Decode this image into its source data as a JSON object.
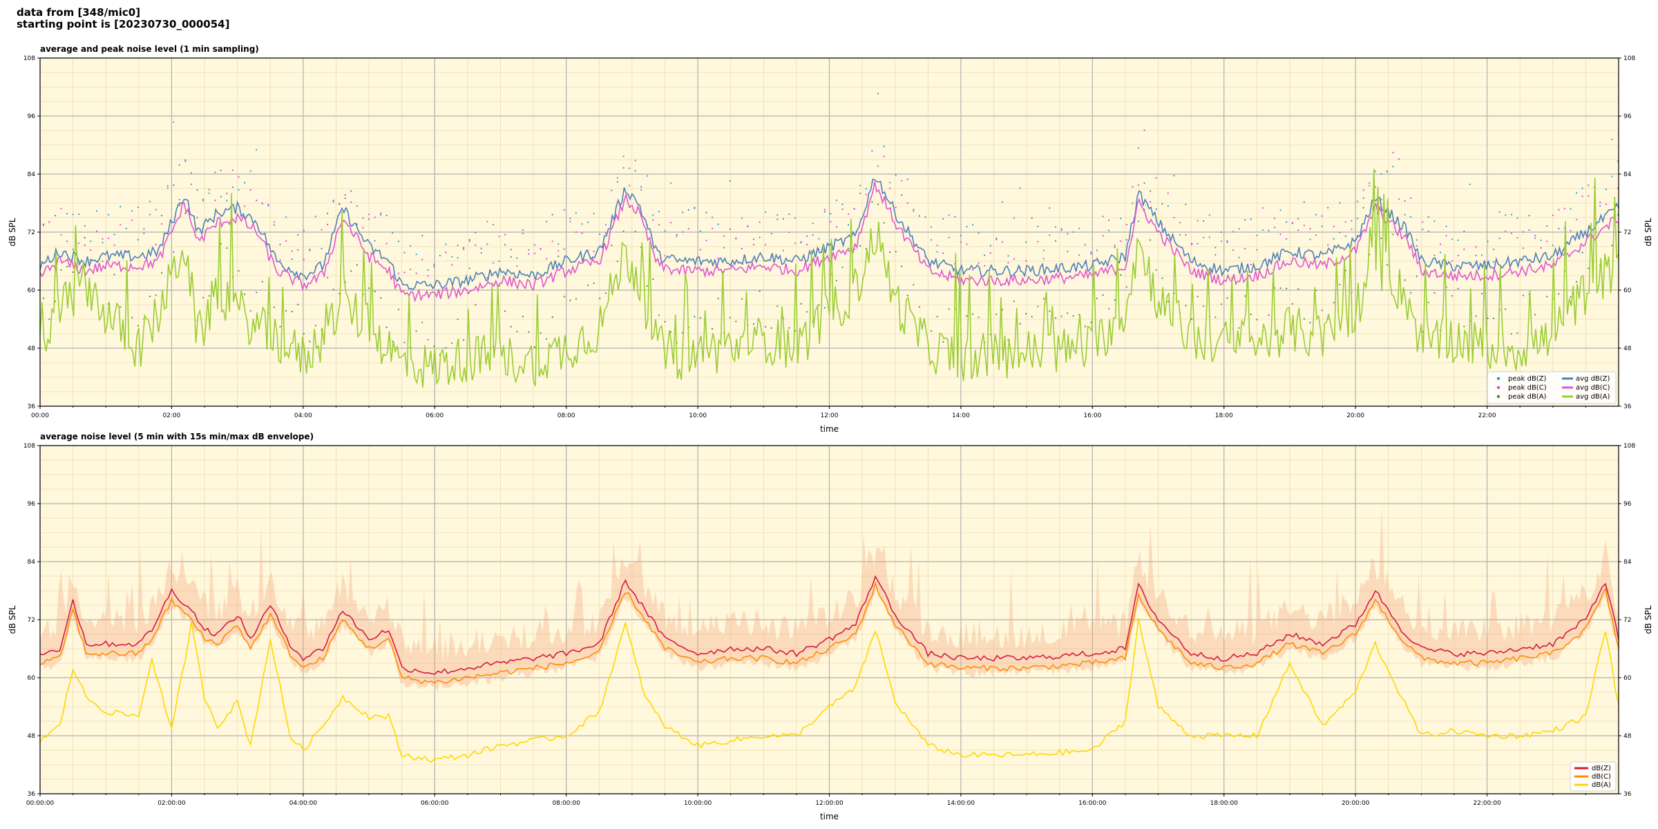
{
  "header": {
    "line1": "data from [348/mic0]",
    "line2": "starting point is [20230730_000054]"
  },
  "chart_data": [
    {
      "type": "line",
      "title": "average and peak noise level (1 min sampling)",
      "xlabel": "time",
      "ylabel": "dB SPL",
      "ylim": [
        36,
        108
      ],
      "yticks": [
        36,
        48,
        60,
        72,
        84,
        96,
        108
      ],
      "xlim_hours": [
        0,
        24
      ],
      "xtick_labels": [
        "00:00",
        "02:00",
        "04:00",
        "06:00",
        "08:00",
        "10:00",
        "12:00",
        "14:00",
        "16:00",
        "18:00",
        "20:00",
        "22:00"
      ],
      "grid": true,
      "legend_position": "lower-right",
      "legend": [
        {
          "label": "peak dB(Z)",
          "kind": "dots",
          "color": "#1f9bd6"
        },
        {
          "label": "peak dB(C)",
          "kind": "dots",
          "color": "#e040e0"
        },
        {
          "label": "peak dB(A)",
          "kind": "dots",
          "color": "#4a8a4a"
        },
        {
          "label": "avg dB(Z)",
          "kind": "line",
          "color": "#4e7fb8"
        },
        {
          "label": "avg dB(C)",
          "kind": "line",
          "color": "#e055d0"
        },
        {
          "label": "avg dB(A)",
          "kind": "line",
          "color": "#9acd32"
        }
      ],
      "series": [
        {
          "name": "avg dB(Z)",
          "color": "#4e7fb8",
          "x": [
            0,
            0.3,
            0.7,
            1.0,
            1.5,
            1.8,
            2.2,
            2.4,
            2.7,
            3.0,
            3.3,
            3.6,
            4.0,
            4.3,
            4.6,
            5.0,
            5.3,
            5.5,
            6.0,
            6.5,
            7.0,
            7.5,
            8.0,
            8.5,
            8.9,
            9.1,
            9.4,
            9.7,
            10.0,
            10.5,
            11.0,
            11.5,
            12.0,
            12.4,
            12.7,
            13.0,
            13.5,
            14.0,
            15.0,
            16.0,
            16.5,
            16.7,
            17.0,
            17.5,
            18.0,
            18.5,
            19.0,
            19.5,
            20.0,
            20.3,
            20.8,
            21.0,
            21.5,
            22.0,
            22.5,
            23.0,
            23.5,
            24.0
          ],
          "values": [
            65,
            68,
            66,
            67,
            67,
            68,
            80,
            72,
            76,
            77,
            74,
            66,
            63,
            65,
            77,
            69,
            66,
            61,
            61,
            62,
            64,
            63,
            66,
            68,
            81,
            78,
            67,
            66,
            66,
            66,
            67,
            66,
            69,
            71,
            84,
            76,
            66,
            64,
            64,
            65,
            67,
            80,
            74,
            66,
            64,
            65,
            68,
            67,
            70,
            79,
            72,
            66,
            65,
            65,
            66,
            67,
            72,
            77
          ]
        },
        {
          "name": "avg dB(C)",
          "color": "#e055d0",
          "x": [
            0,
            0.3,
            0.7,
            1.0,
            1.5,
            1.8,
            2.2,
            2.4,
            2.7,
            3.0,
            3.3,
            3.6,
            4.0,
            4.3,
            4.6,
            5.0,
            5.3,
            5.5,
            6.0,
            6.5,
            7.0,
            7.5,
            8.0,
            8.5,
            8.9,
            9.1,
            9.4,
            9.7,
            10.0,
            10.5,
            11.0,
            11.5,
            12.0,
            12.4,
            12.7,
            13.0,
            13.5,
            14.0,
            15.0,
            16.0,
            16.5,
            16.7,
            17.0,
            17.5,
            18.0,
            18.5,
            19.0,
            19.5,
            20.0,
            20.3,
            20.8,
            21.0,
            21.5,
            22.0,
            22.5,
            23.0,
            23.5,
            24.0
          ],
          "values": [
            63,
            66,
            64,
            65,
            65,
            66,
            78,
            70,
            74,
            75,
            72,
            64,
            61,
            63,
            75,
            67,
            64,
            59,
            59,
            60,
            62,
            61,
            64,
            66,
            79,
            76,
            65,
            64,
            64,
            64,
            65,
            64,
            67,
            69,
            82,
            74,
            64,
            62,
            62,
            63,
            65,
            78,
            72,
            64,
            62,
            63,
            66,
            65,
            68,
            77,
            70,
            64,
            63,
            63,
            64,
            65,
            70,
            75
          ]
        },
        {
          "name": "avg dB(A)",
          "color": "#9acd32",
          "x": [
            0,
            0.3,
            0.7,
            1.0,
            1.5,
            1.8,
            2.2,
            2.4,
            2.7,
            3.0,
            3.3,
            3.6,
            4.0,
            4.3,
            4.6,
            5.0,
            5.3,
            5.5,
            6.0,
            6.5,
            7.0,
            7.5,
            8.0,
            8.5,
            8.9,
            9.1,
            9.4,
            9.7,
            10.0,
            10.5,
            11.0,
            11.5,
            12.0,
            12.4,
            12.7,
            13.0,
            13.5,
            14.0,
            15.0,
            16.0,
            16.5,
            16.7,
            17.0,
            17.5,
            18.0,
            18.5,
            19.0,
            19.5,
            20.0,
            20.3,
            20.8,
            21.0,
            21.5,
            22.0,
            22.5,
            23.0,
            23.5,
            24.0
          ],
          "values": [
            47,
            56,
            62,
            55,
            48,
            55,
            70,
            50,
            60,
            56,
            52,
            50,
            46,
            50,
            58,
            52,
            48,
            45,
            44,
            46,
            46,
            45,
            48,
            52,
            68,
            62,
            48,
            46,
            47,
            48,
            50,
            48,
            55,
            60,
            72,
            58,
            48,
            46,
            47,
            48,
            56,
            70,
            58,
            50,
            49,
            49,
            52,
            50,
            56,
            66,
            58,
            49,
            50,
            48,
            48,
            50,
            60,
            65
          ]
        }
      ]
    },
    {
      "type": "line",
      "title": "average noise level (5 min with 15s min/max dB envelope)",
      "xlabel": "time",
      "ylabel": "dB SPL",
      "ylim": [
        36,
        108
      ],
      "yticks": [
        36,
        48,
        60,
        72,
        84,
        96,
        108
      ],
      "xlim_hours": [
        0,
        24
      ],
      "xtick_labels": [
        "00:00:00",
        "02:00:00",
        "04:00:00",
        "06:00:00",
        "08:00:00",
        "10:00:00",
        "12:00:00",
        "14:00:00",
        "16:00:00",
        "18:00:00",
        "20:00:00",
        "22:00:00"
      ],
      "grid": true,
      "legend_position": "lower-right",
      "legend": [
        {
          "label": "dB(Z)",
          "kind": "line",
          "color": "#d7193c"
        },
        {
          "label": "dB(C)",
          "kind": "line",
          "color": "#ff8c00"
        },
        {
          "label": "dB(A)",
          "kind": "line",
          "color": "#ffd700"
        }
      ],
      "series": [
        {
          "name": "dB(Z)",
          "color": "#d7193c",
          "x": [
            0,
            0.3,
            0.5,
            0.7,
            1.0,
            1.5,
            1.7,
            2.0,
            2.3,
            2.5,
            2.7,
            3.0,
            3.2,
            3.5,
            3.8,
            4.0,
            4.3,
            4.6,
            5.0,
            5.3,
            5.5,
            6.0,
            6.5,
            7.0,
            7.5,
            8.0,
            8.5,
            8.9,
            9.2,
            9.5,
            10.0,
            10.5,
            11.0,
            11.5,
            12.0,
            12.4,
            12.7,
            13.0,
            13.5,
            14.0,
            15.0,
            16.0,
            16.5,
            16.7,
            17.0,
            17.5,
            18.0,
            18.5,
            19.0,
            19.5,
            20.0,
            20.3,
            20.7,
            21.0,
            21.5,
            22.0,
            22.5,
            23.0,
            23.5,
            23.8,
            24.0
          ],
          "values": [
            65,
            66,
            76,
            67,
            67,
            67,
            70,
            78,
            74,
            70,
            69,
            73,
            68,
            75,
            67,
            64,
            66,
            74,
            68,
            70,
            62,
            61,
            62,
            63,
            64,
            65,
            67,
            80,
            74,
            68,
            65,
            66,
            66,
            65,
            68,
            71,
            81,
            73,
            65,
            64,
            64,
            65,
            66,
            79,
            72,
            65,
            64,
            65,
            69,
            67,
            71,
            78,
            70,
            66,
            65,
            65,
            66,
            67,
            72,
            80,
            68
          ]
        },
        {
          "name": "dB(C)",
          "color": "#ff8c00",
          "x": [
            0,
            0.3,
            0.5,
            0.7,
            1.0,
            1.5,
            1.7,
            2.0,
            2.3,
            2.5,
            2.7,
            3.0,
            3.2,
            3.5,
            3.8,
            4.0,
            4.3,
            4.6,
            5.0,
            5.3,
            5.5,
            6.0,
            6.5,
            7.0,
            7.5,
            8.0,
            8.5,
            8.9,
            9.2,
            9.5,
            10.0,
            10.5,
            11.0,
            11.5,
            12.0,
            12.4,
            12.7,
            13.0,
            13.5,
            14.0,
            15.0,
            16.0,
            16.5,
            16.7,
            17.0,
            17.5,
            18.0,
            18.5,
            19.0,
            19.5,
            20.0,
            20.3,
            20.7,
            21.0,
            21.5,
            22.0,
            22.5,
            23.0,
            23.5,
            23.8,
            24.0
          ],
          "values": [
            63,
            64,
            74,
            65,
            65,
            65,
            68,
            76,
            72,
            68,
            67,
            71,
            66,
            73,
            65,
            62,
            64,
            72,
            66,
            68,
            60,
            59,
            60,
            61,
            62,
            63,
            65,
            78,
            72,
            66,
            63,
            64,
            64,
            63,
            66,
            69,
            79,
            71,
            63,
            62,
            62,
            63,
            64,
            77,
            70,
            63,
            62,
            63,
            67,
            65,
            69,
            76,
            68,
            64,
            63,
            63,
            64,
            65,
            70,
            78,
            66
          ]
        },
        {
          "name": "dB(A)",
          "color": "#ffd700",
          "x": [
            0,
            0.3,
            0.5,
            0.7,
            1.0,
            1.5,
            1.7,
            2.0,
            2.3,
            2.5,
            2.7,
            3.0,
            3.2,
            3.5,
            3.8,
            4.0,
            4.3,
            4.6,
            5.0,
            5.3,
            5.5,
            6.0,
            6.5,
            7.0,
            7.5,
            8.0,
            8.5,
            8.9,
            9.2,
            9.5,
            10.0,
            10.5,
            11.0,
            11.5,
            12.0,
            12.4,
            12.7,
            13.0,
            13.5,
            14.0,
            15.0,
            16.0,
            16.5,
            16.7,
            17.0,
            17.5,
            18.0,
            18.5,
            19.0,
            19.5,
            20.0,
            20.3,
            20.7,
            21.0,
            21.5,
            22.0,
            22.5,
            23.0,
            23.5,
            23.8,
            24.0
          ],
          "values": [
            47,
            50,
            62,
            56,
            53,
            52,
            64,
            49,
            71,
            56,
            50,
            55,
            46,
            68,
            48,
            45,
            50,
            56,
            52,
            52,
            44,
            43,
            44,
            46,
            47,
            48,
            53,
            71,
            56,
            50,
            46,
            47,
            48,
            48,
            54,
            58,
            70,
            55,
            46,
            44,
            44,
            45,
            51,
            72,
            54,
            48,
            48,
            48,
            63,
            50,
            57,
            67,
            56,
            48,
            49,
            48,
            48,
            49,
            52,
            70,
            54
          ]
        }
      ]
    }
  ]
}
